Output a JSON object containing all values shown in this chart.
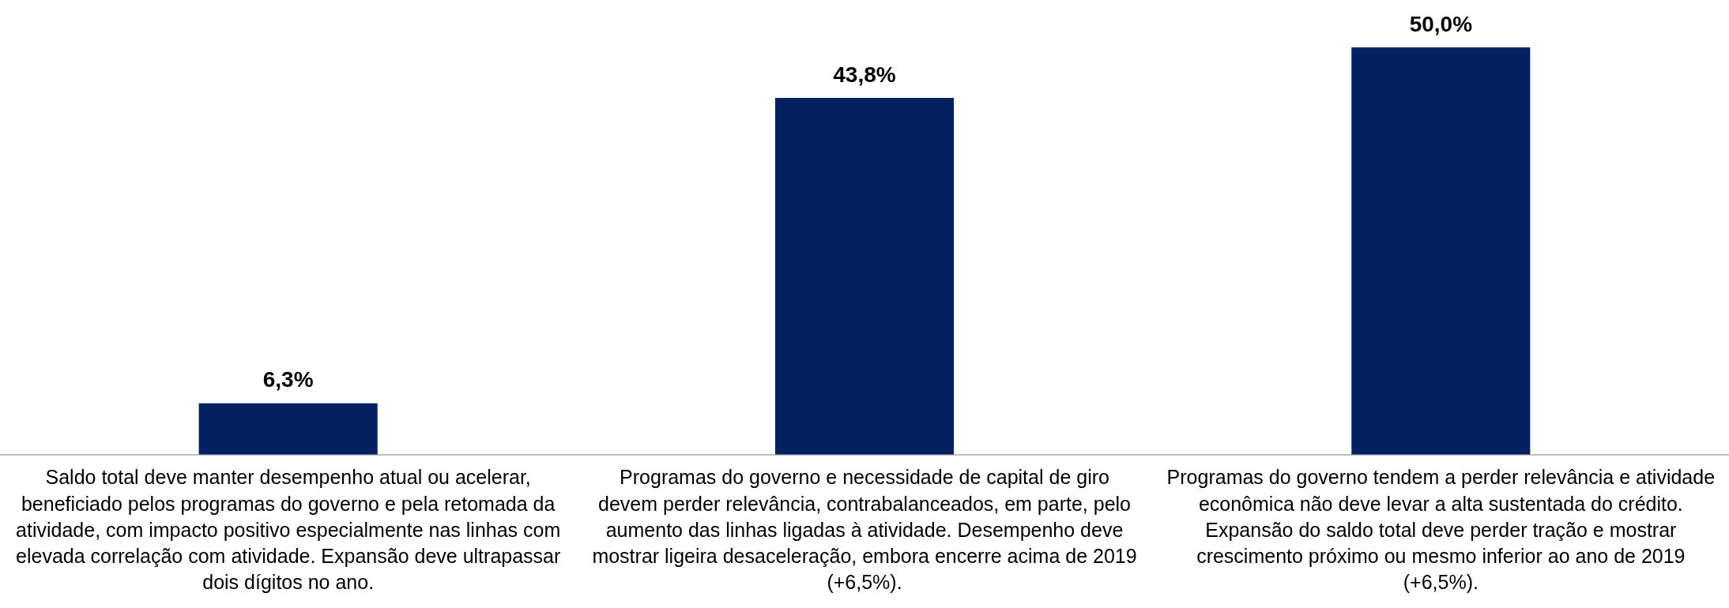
{
  "chart_data": {
    "type": "bar",
    "categories": [
      "Saldo total deve manter desempenho atual ou acelerar, beneficiado pelos programas do governo e pela retomada da atividade, com impacto positivo especialmente nas linhas com elevada correlação com atividade. Expansão deve ultrapassar dois dígitos no ano.",
      "Programas do governo e necessidade de capital de giro devem perder relevância, contrabalanceados, em parte, pelo aumento das linhas ligadas à atividade. Desempenho deve mostrar ligeira desaceleração, embora encerre acima de 2019 (+6,5%).",
      "Programas do governo tendem a perder relevância e atividade econômica não deve levar a alta sustentada do crédito. Expansão do saldo total deve perder tração e mostrar crescimento próximo ou mesmo inferior ao ano de 2019 (+6,5%)."
    ],
    "values": [
      6.3,
      43.8,
      50.0
    ],
    "value_labels": [
      "6,3%",
      "43,8%",
      "50,0%"
    ],
    "color": "#03215e",
    "tick_labels": "x",
    "grid": false,
    "legend": false
  }
}
